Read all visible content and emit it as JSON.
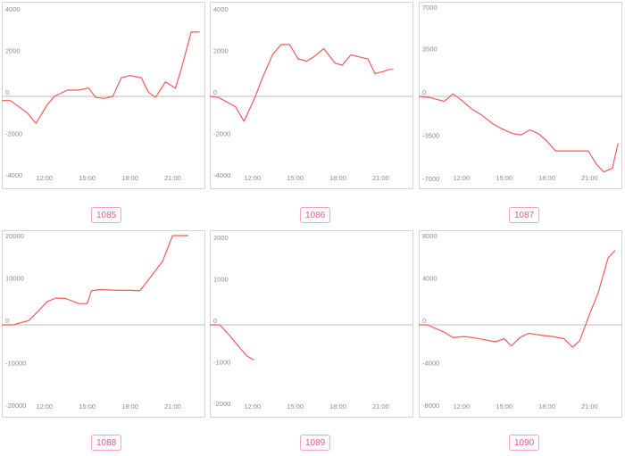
{
  "colors": {
    "line": "#f05a5a",
    "frame": "#d4d4d4",
    "zero_line": "#bdbdbd",
    "badge_border": "#f7a1bd",
    "badge_text": "#e95a8a",
    "tick_text": "#8a8a8a"
  },
  "chart_data": [
    {
      "type": "line",
      "id_label": "1085",
      "ylim": [
        -4300,
        4300
      ],
      "yticks": [
        4000,
        2000,
        0,
        -2000,
        -4000
      ],
      "ytick_labels": [
        "4000",
        "2000",
        "0",
        "-2000",
        "-4000"
      ],
      "xlim": [
        9.0,
        23.3
      ],
      "xticks": [
        12,
        15,
        18,
        21
      ],
      "xtick_labels": [
        "12:00",
        "15:00",
        "18:00",
        "21:00"
      ],
      "x": [
        9.0,
        9.6,
        10.8,
        11.4,
        12.2,
        12.7,
        13.6,
        14.4,
        15.1,
        15.6,
        16.2,
        16.8,
        17.4,
        18.0,
        18.8,
        19.3,
        19.8,
        20.5,
        21.2,
        21.6,
        22.3,
        22.9
      ],
      "values": [
        -200,
        -200,
        -800,
        -1300,
        -400,
        0,
        300,
        300,
        400,
        -50,
        -100,
        0,
        900,
        1000,
        900,
        200,
        -50,
        700,
        400,
        1300,
        3100,
        3100
      ]
    },
    {
      "type": "line",
      "id_label": "1086",
      "ylim": [
        -4300,
        4300
      ],
      "yticks": [
        4000,
        2000,
        0,
        -2000,
        -4000
      ],
      "ytick_labels": [
        "4000",
        "2000",
        "0",
        "-2000",
        "-4000"
      ],
      "xlim": [
        9.0,
        23.3
      ],
      "xticks": [
        12,
        15,
        18,
        21
      ],
      "xtick_labels": [
        "12:00",
        "15:00",
        "18:00",
        "21:00"
      ],
      "x": [
        9.0,
        9.6,
        10.8,
        11.4,
        12.2,
        12.7,
        13.4,
        14.0,
        14.6,
        15.2,
        15.8,
        16.3,
        17.0,
        17.8,
        18.3,
        18.9,
        19.5,
        20.1,
        20.6,
        21.2,
        21.6,
        21.9
      ],
      "values": [
        0,
        -50,
        -500,
        -1200,
        0,
        900,
        2000,
        2500,
        2500,
        1800,
        1700,
        1900,
        2300,
        1600,
        1500,
        2000,
        1900,
        1800,
        1100,
        1200,
        1300,
        1300
      ]
    },
    {
      "type": "line",
      "id_label": "1087",
      "ylim": [
        -7200,
        7200
      ],
      "yticks": [
        7000,
        3500,
        0,
        -3500,
        -7000
      ],
      "ytick_labels": [
        "7000",
        "3500",
        "0",
        "-3500",
        "-7000"
      ],
      "xlim": [
        9.0,
        23.3
      ],
      "xticks": [
        12,
        15,
        18,
        21
      ],
      "xtick_labels": [
        "12:00",
        "15:00",
        "18:00",
        "21:00"
      ],
      "x": [
        9.0,
        9.8,
        10.8,
        11.4,
        12.0,
        12.7,
        13.4,
        14.2,
        14.8,
        15.6,
        16.2,
        16.8,
        17.4,
        18.0,
        18.6,
        19.3,
        20.1,
        20.9,
        21.5,
        22.0,
        22.6,
        23.0
      ],
      "values": [
        0,
        -100,
        -400,
        200,
        -300,
        -1000,
        -1500,
        -2200,
        -2600,
        -3000,
        -3100,
        -2700,
        -3000,
        -3600,
        -4400,
        -4400,
        -4400,
        -4400,
        -5500,
        -6100,
        -5800,
        -3800
      ]
    },
    {
      "type": "line",
      "id_label": "1088",
      "ylim": [
        -21000,
        21000
      ],
      "yticks": [
        20000,
        10000,
        0,
        -10000,
        -20000
      ],
      "ytick_labels": [
        "20000",
        "10000",
        "0",
        "-10000",
        "-20000"
      ],
      "xlim": [
        9.0,
        23.3
      ],
      "xticks": [
        12,
        15,
        18,
        21
      ],
      "xtick_labels": [
        "12:00",
        "15:00",
        "18:00",
        "21:00"
      ],
      "x": [
        9.0,
        9.8,
        10.9,
        11.5,
        12.2,
        12.8,
        13.5,
        14.4,
        15.0,
        15.3,
        15.9,
        16.6,
        17.5,
        18.1,
        18.7,
        19.4,
        20.3,
        21.0,
        21.6,
        22.1
      ],
      "values": [
        0,
        0,
        1000,
        3000,
        5500,
        6300,
        6200,
        5000,
        5000,
        8000,
        8300,
        8200,
        8100,
        8100,
        8000,
        11000,
        15000,
        21000,
        21000,
        21000
      ]
    },
    {
      "type": "line",
      "id_label": "1089",
      "ylim": [
        -2150,
        2150
      ],
      "yticks": [
        2000,
        1000,
        0,
        -1000,
        -2000
      ],
      "ytick_labels": [
        "2000",
        "1000",
        "0",
        "-1000",
        "-2000"
      ],
      "xlim": [
        9.0,
        23.3
      ],
      "xticks": [
        12,
        15,
        18,
        21
      ],
      "xtick_labels": [
        "12:00",
        "15:00",
        "18:00",
        "21:00"
      ],
      "x": [
        9.0,
        9.7,
        10.5,
        11.1,
        11.6,
        12.1
      ],
      "values": [
        0,
        0,
        -300,
        -550,
        -750,
        -850
      ]
    },
    {
      "type": "line",
      "id_label": "1090",
      "ylim": [
        -8400,
        8400
      ],
      "yticks": [
        8000,
        4000,
        0,
        -4000,
        -8000
      ],
      "ytick_labels": [
        "8000",
        "4000",
        "0",
        "-4000",
        "-8000"
      ],
      "xlim": [
        9.0,
        23.3
      ],
      "xticks": [
        12,
        15,
        18,
        21
      ],
      "xtick_labels": [
        "12:00",
        "15:00",
        "18:00",
        "21:00"
      ],
      "x": [
        9.0,
        9.6,
        10.8,
        11.4,
        12.2,
        12.8,
        13.6,
        14.4,
        15.0,
        15.5,
        16.1,
        16.7,
        17.2,
        17.7,
        18.4,
        19.2,
        19.8,
        20.3,
        21.0,
        21.6,
        22.3,
        22.8
      ],
      "values": [
        0,
        0,
        -700,
        -1200,
        -1100,
        -1200,
        -1400,
        -1600,
        -1300,
        -2000,
        -1200,
        -800,
        -900,
        -1000,
        -1100,
        -1300,
        -2100,
        -1500,
        1000,
        3000,
        6300,
        7000
      ]
    }
  ]
}
